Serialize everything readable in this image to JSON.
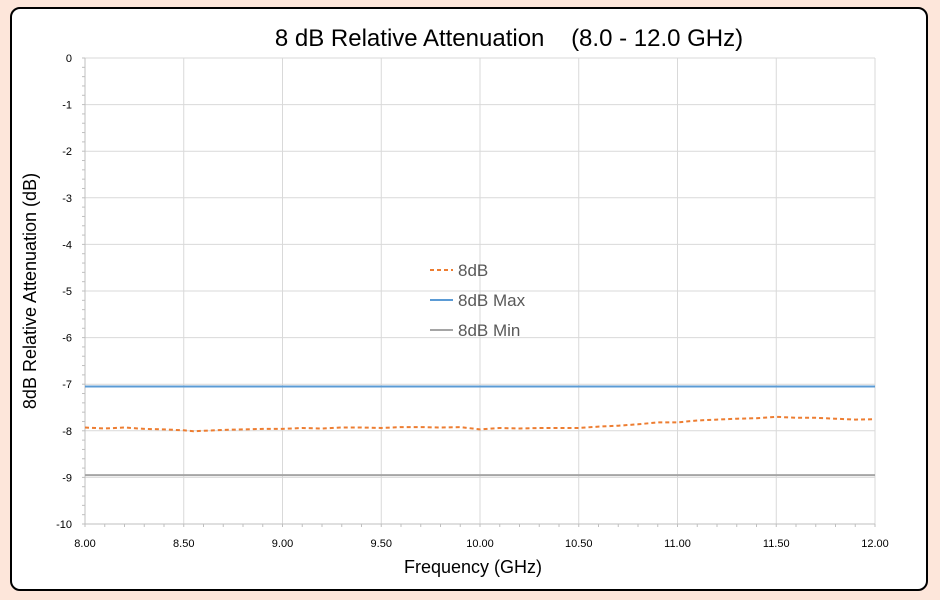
{
  "chart_data": {
    "type": "line",
    "title": "8 dB Relative Attenuation    (8.0 - 12.0 GHz)",
    "xlabel": "Frequency (GHz)",
    "ylabel": "8dB Relative Attenuation (dB)",
    "xlim": [
      8.0,
      12.0
    ],
    "ylim": [
      -10,
      0
    ],
    "x_ticks": [
      "8.00",
      "8.50",
      "9.00",
      "9.50",
      "10.00",
      "10.50",
      "11.00",
      "11.50",
      "12.00"
    ],
    "y_ticks": [
      "0",
      "-1",
      "-2",
      "-3",
      "-4",
      "-5",
      "-6",
      "-7",
      "-8",
      "-9",
      "-10"
    ],
    "grid": true,
    "legend_position": "center",
    "series": [
      {
        "name": "8dB",
        "color": "#ed7d31",
        "style": "dashed",
        "x": [
          8.0,
          8.1,
          8.2,
          8.3,
          8.4,
          8.5,
          8.55,
          8.6,
          8.7,
          8.8,
          8.9,
          9.0,
          9.1,
          9.2,
          9.3,
          9.4,
          9.5,
          9.6,
          9.7,
          9.8,
          9.9,
          10.0,
          10.1,
          10.2,
          10.3,
          10.4,
          10.5,
          10.6,
          10.7,
          10.8,
          10.9,
          11.0,
          11.1,
          11.2,
          11.3,
          11.4,
          11.5,
          11.6,
          11.7,
          11.8,
          11.9,
          12.0
        ],
        "y": [
          -7.93,
          -7.95,
          -7.93,
          -7.96,
          -7.97,
          -7.99,
          -8.01,
          -8.0,
          -7.98,
          -7.97,
          -7.96,
          -7.96,
          -7.94,
          -7.95,
          -7.93,
          -7.93,
          -7.94,
          -7.92,
          -7.92,
          -7.93,
          -7.92,
          -7.97,
          -7.94,
          -7.95,
          -7.94,
          -7.94,
          -7.94,
          -7.91,
          -7.89,
          -7.86,
          -7.82,
          -7.82,
          -7.78,
          -7.76,
          -7.74,
          -7.73,
          -7.7,
          -7.72,
          -7.72,
          -7.74,
          -7.76,
          -7.75
        ]
      },
      {
        "name": "8dB Max",
        "color": "#5b9bd5",
        "style": "solid",
        "x": [
          8.0,
          12.0
        ],
        "y": [
          -7.05,
          -7.05
        ]
      },
      {
        "name": "8dB Min",
        "color": "#a5a5a5",
        "style": "solid",
        "x": [
          8.0,
          12.0
        ],
        "y": [
          -8.95,
          -8.95
        ]
      }
    ]
  }
}
